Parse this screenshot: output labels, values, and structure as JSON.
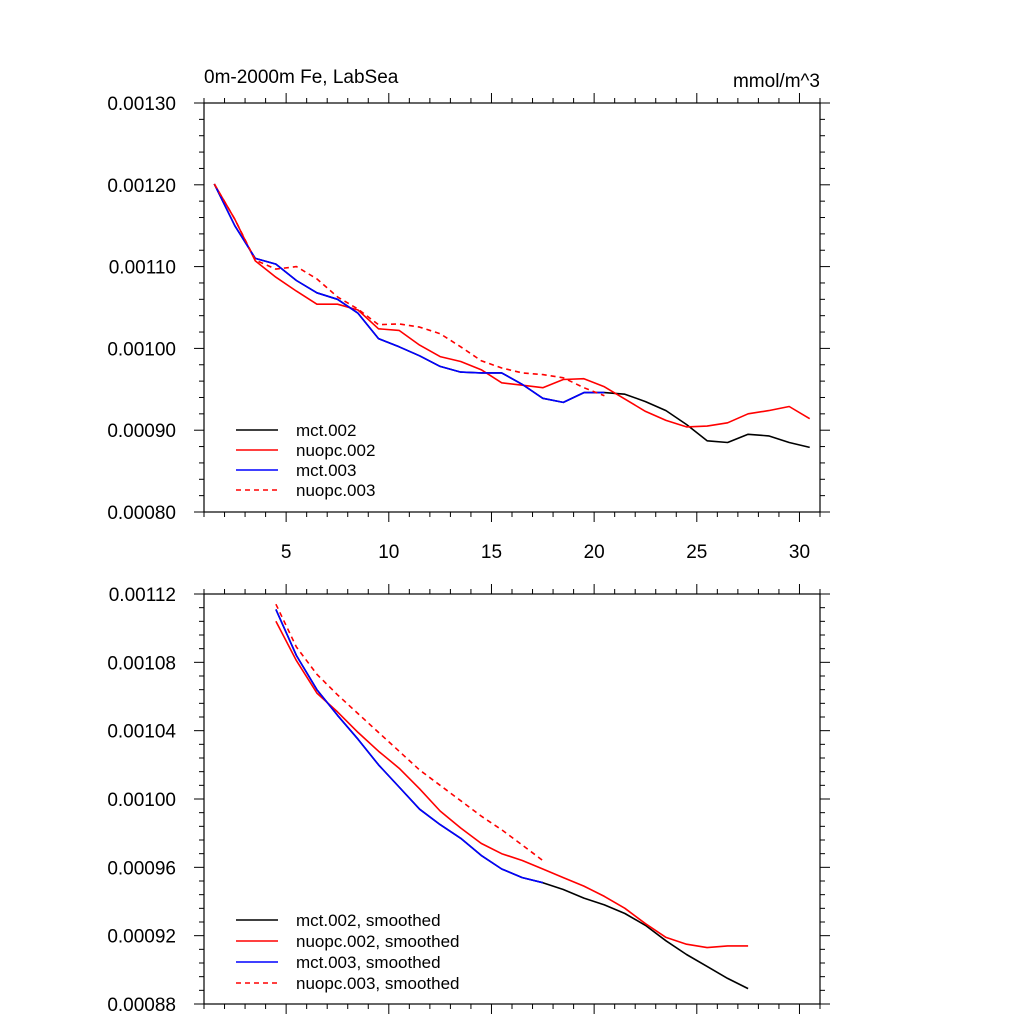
{
  "chart_data": [
    {
      "type": "line",
      "title_left": "0m-2000m Fe, LabSea",
      "title_right": "mmol/m^3",
      "xlim": [
        1,
        31
      ],
      "ylim": [
        0.0008,
        0.0013
      ],
      "x_ticks": [
        5,
        10,
        15,
        20,
        25,
        30
      ],
      "x_tick_labels": [
        "5",
        "10",
        "15",
        "20",
        "25",
        "30"
      ],
      "y_ticks": [
        0.0008,
        0.0009,
        0.001,
        0.0011,
        0.0012,
        0.0013
      ],
      "y_tick_labels": [
        "0.00080",
        "0.00090",
        "0.00100",
        "0.00110",
        "0.00120",
        "0.00130"
      ],
      "legend_position": "bottom-left",
      "series": [
        {
          "name": "mct.002",
          "color": "#000000",
          "dash": "solid",
          "x": [
            1.5,
            2.5,
            3.5,
            4.5,
            5.5,
            6.5,
            7.5,
            8.5,
            9.5,
            10.5,
            11.5,
            12.5,
            13.5,
            14.5,
            15.5,
            16.5,
            17.5,
            18.5,
            19.5,
            20.5,
            21.5,
            22.5,
            23.5,
            24.5,
            25.5,
            26.5,
            27.5,
            28.5,
            29.5,
            30.5
          ],
          "y": [
            0.001201,
            0.00115,
            0.00111,
            0.001103,
            0.001083,
            0.001068,
            0.00106,
            0.001043,
            0.001012,
            0.001002,
            0.000991,
            0.000978,
            0.000971,
            0.00097,
            0.00097,
            0.000956,
            0.000939,
            0.000934,
            0.000946,
            0.000946,
            0.000944,
            0.000935,
            0.000924,
            0.000907,
            0.000887,
            0.000885,
            0.000895,
            0.000893,
            0.000885,
            0.000879
          ]
        },
        {
          "name": "nuopc.002",
          "color": "#ff0000",
          "dash": "solid",
          "x": [
            1.5,
            2.5,
            3.5,
            4.5,
            5.5,
            6.5,
            7.5,
            8.5,
            9.5,
            10.5,
            11.5,
            12.5,
            13.5,
            14.5,
            15.5,
            16.5,
            17.5,
            18.5,
            19.5,
            20.5,
            21.5,
            22.5,
            23.5,
            24.5,
            25.5,
            26.5,
            27.5,
            28.5,
            29.5,
            30.5
          ],
          "y": [
            0.001201,
            0.001158,
            0.001107,
            0.001087,
            0.00107,
            0.001054,
            0.001054,
            0.001047,
            0.001024,
            0.001022,
            0.001004,
            0.00099,
            0.000984,
            0.000974,
            0.000958,
            0.000955,
            0.000952,
            0.000962,
            0.000963,
            0.000953,
            0.000938,
            0.000923,
            0.000912,
            0.000904,
            0.000905,
            0.000909,
            0.00092,
            0.000924,
            0.000929,
            0.000914
          ]
        },
        {
          "name": "mct.003",
          "color": "#0000ff",
          "dash": "solid",
          "x": [
            1.5,
            2.5,
            3.5,
            4.5,
            5.5,
            6.5,
            7.5,
            8.5,
            9.5,
            10.5,
            11.5,
            12.5,
            13.5,
            14.5,
            15.5,
            16.5,
            17.5,
            18.5,
            19.5,
            20.5
          ],
          "y": [
            0.001201,
            0.00115,
            0.00111,
            0.001103,
            0.001083,
            0.001068,
            0.00106,
            0.001043,
            0.001012,
            0.001002,
            0.000991,
            0.000978,
            0.000971,
            0.00097,
            0.00097,
            0.000956,
            0.000939,
            0.000934,
            0.000946,
            0.000946
          ]
        },
        {
          "name": "nuopc.003",
          "color": "#ff0000",
          "dash": "dashed",
          "x": [
            1.5,
            2.5,
            3.5,
            4.5,
            5.5,
            6.5,
            7.5,
            8.5,
            9.5,
            10.5,
            11.5,
            12.5,
            13.5,
            14.5,
            15.5,
            16.5,
            17.5,
            18.5,
            19.5,
            20.5
          ],
          "y": [
            0.001201,
            0.001158,
            0.001108,
            0.001097,
            0.0011,
            0.001085,
            0.001063,
            0.001048,
            0.001029,
            0.00103,
            0.001026,
            0.001018,
            0.001002,
            0.000985,
            0.000976,
            0.00097,
            0.000968,
            0.000964,
            0.000952,
            0.000942
          ]
        }
      ]
    },
    {
      "type": "line",
      "xlim": [
        1,
        31
      ],
      "ylim": [
        0.00088,
        0.00112
      ],
      "x_ticks": [
        5,
        10,
        15,
        20,
        25,
        30
      ],
      "y_ticks": [
        0.00088,
        0.00092,
        0.00096,
        0.001,
        0.00104,
        0.00108,
        0.00112
      ],
      "y_tick_labels": [
        "0.00088",
        "0.00092",
        "0.00096",
        "0.00100",
        "0.00104",
        "0.00108",
        "0.00112"
      ],
      "legend_position": "bottom-left",
      "series": [
        {
          "name": "mct.002, smoothed",
          "color": "#000000",
          "dash": "solid",
          "x": [
            4.5,
            5.5,
            6.5,
            7.5,
            8.5,
            9.5,
            10.5,
            11.5,
            12.5,
            13.5,
            14.5,
            15.5,
            16.5,
            17.5,
            18.5,
            19.5,
            20.5,
            21.5,
            22.5,
            23.5,
            24.5,
            25.5,
            26.5,
            27.5
          ],
          "y": [
            0.001111,
            0.001084,
            0.001064,
            0.001049,
            0.001035,
            0.00102,
            0.001007,
            0.000994,
            0.000985,
            0.000977,
            0.000967,
            0.000959,
            0.000954,
            0.000951,
            0.000947,
            0.000942,
            0.000938,
            0.000933,
            0.000926,
            0.000917,
            0.000909,
            0.000902,
            0.000895,
            0.000889
          ]
        },
        {
          "name": "nuopc.002, smoothed",
          "color": "#ff0000",
          "dash": "solid",
          "x": [
            4.5,
            5.5,
            6.5,
            7.5,
            8.5,
            9.5,
            10.5,
            11.5,
            12.5,
            13.5,
            14.5,
            15.5,
            16.5,
            17.5,
            18.5,
            19.5,
            20.5,
            21.5,
            22.5,
            23.5,
            24.5,
            25.5,
            26.5,
            27.5
          ],
          "y": [
            0.001104,
            0.001081,
            0.001062,
            0.001051,
            0.001039,
            0.001028,
            0.001018,
            0.001006,
            0.000993,
            0.000983,
            0.000974,
            0.000968,
            0.000964,
            0.000959,
            0.000954,
            0.000949,
            0.000943,
            0.000936,
            0.000927,
            0.000919,
            0.000915,
            0.000913,
            0.000914,
            0.000914
          ]
        },
        {
          "name": "mct.003, smoothed",
          "color": "#0000ff",
          "dash": "solid",
          "x": [
            4.5,
            5.5,
            6.5,
            7.5,
            8.5,
            9.5,
            10.5,
            11.5,
            12.5,
            13.5,
            14.5,
            15.5,
            16.5,
            17.5
          ],
          "y": [
            0.001111,
            0.001084,
            0.001064,
            0.001049,
            0.001035,
            0.00102,
            0.001007,
            0.000994,
            0.000985,
            0.000977,
            0.000967,
            0.000959,
            0.000954,
            0.000951
          ]
        },
        {
          "name": "nuopc.003, smoothed",
          "color": "#ff0000",
          "dash": "dashed",
          "x": [
            4.5,
            5.5,
            6.5,
            7.5,
            8.5,
            9.5,
            10.5,
            11.5,
            12.5,
            13.5,
            14.5,
            15.5,
            16.5,
            17.5
          ],
          "y": [
            0.001114,
            0.001089,
            0.001073,
            0.001061,
            0.00105,
            0.001039,
            0.001028,
            0.001017,
            0.001008,
            0.000999,
            0.00099,
            0.000982,
            0.000973,
            0.000964
          ]
        }
      ]
    }
  ]
}
